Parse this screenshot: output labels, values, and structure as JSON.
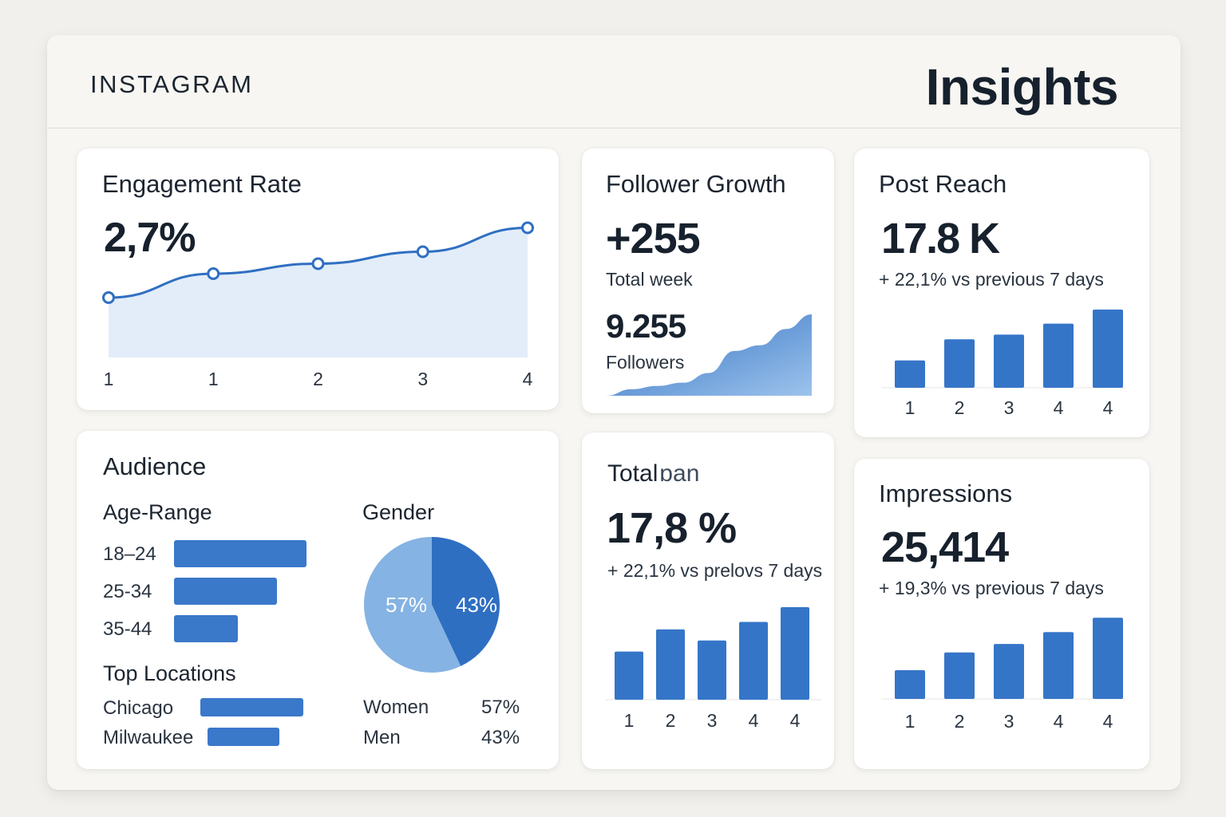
{
  "header": {
    "brand": "INSTAGRAM",
    "title": "Insights"
  },
  "colors": {
    "accent": "#2f6fc2",
    "bar": "#3575c8",
    "area_fill": "#e2edf9",
    "pie_light": "#85b3e3",
    "pie_dark": "#2f6fc2"
  },
  "engagement": {
    "title": "Engagement Rate",
    "value": "2,7%",
    "chart_data": {
      "type": "line",
      "categories": [
        "1",
        "1",
        "2",
        "3",
        "4"
      ],
      "values": [
        1.5,
        2.1,
        2.35,
        2.65,
        3.25
      ],
      "ylim": [
        0,
        4
      ]
    }
  },
  "follower_growth": {
    "title": "Follower Growth",
    "value": "+255",
    "value_caption": "Total week",
    "followers": "9.255",
    "followers_caption": "Followers",
    "chart_data": {
      "type": "area",
      "values": [
        0,
        8,
        12,
        16,
        28,
        55,
        62,
        82,
        100
      ]
    }
  },
  "post_reach": {
    "title": "Post Reach",
    "value": "17.8 K",
    "change": "+ 22,1% vs previous 7 days",
    "chart_data": {
      "type": "bar",
      "categories": [
        "1",
        "2",
        "3",
        "4",
        "4"
      ],
      "values": [
        35,
        62,
        68,
        82,
        100
      ]
    }
  },
  "audience": {
    "title": "Audience",
    "age_title": "Age-Range",
    "age_ranges": [
      {
        "label": "18–24",
        "value": 100
      },
      {
        "label": "25-34",
        "value": 78
      },
      {
        "label": "35-44",
        "value": 48
      }
    ],
    "locations_title": "Top Locations",
    "locations": [
      {
        "label": "Chicago",
        "value": 100
      },
      {
        "label": "Milwaukee",
        "value": 70
      }
    ],
    "gender_title": "Gender",
    "gender": [
      {
        "label": "Women",
        "percent": "57%",
        "value": 57
      },
      {
        "label": "Men",
        "percent": "43%",
        "value": 43
      }
    ]
  },
  "total": {
    "title": "Total",
    "title_suffix": "ɒan",
    "value": "17,8 %",
    "change": "+ 22,1% vs prelovs 7 days",
    "chart_data": {
      "type": "bar",
      "categories": [
        "1",
        "2",
        "3",
        "4",
        "4"
      ],
      "values": [
        52,
        76,
        64,
        84,
        100
      ]
    }
  },
  "impressions": {
    "title": "Impressions",
    "value": "25,414",
    "change": "+ 19,3% vs previous 7 days",
    "chart_data": {
      "type": "bar",
      "categories": [
        "1",
        "2",
        "3",
        "4",
        "4"
      ],
      "values": [
        34,
        55,
        65,
        79,
        96
      ]
    }
  }
}
